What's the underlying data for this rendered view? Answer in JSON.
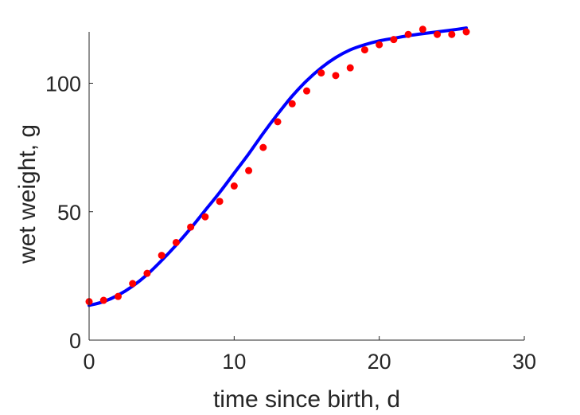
{
  "chart_data": {
    "type": "scatter",
    "title": "",
    "xlabel": "time since birth, d",
    "ylabel": "wet weight, g",
    "xlim": [
      0,
      30
    ],
    "ylim": [
      0,
      120
    ],
    "xticks": [
      0,
      10,
      20,
      30
    ],
    "yticks": [
      0,
      50,
      100
    ],
    "xtick_labels": [
      "0",
      "10",
      "20",
      "30"
    ],
    "ytick_labels": [
      "0",
      "50",
      "100"
    ],
    "grid": false,
    "series": [
      {
        "kind": "points",
        "color": "#ff0000",
        "x": [
          0,
          1,
          2,
          3,
          4,
          5,
          6,
          7,
          8,
          9,
          10,
          11,
          12,
          13,
          14,
          15,
          16,
          17,
          18,
          19,
          20,
          21,
          22,
          23,
          24,
          25,
          26
        ],
        "y": [
          15,
          15.5,
          17,
          22,
          26,
          33,
          38,
          44,
          48,
          54,
          60,
          66,
          75,
          85,
          92,
          97,
          104,
          103,
          106,
          113,
          115,
          117,
          119,
          121,
          119,
          119,
          120
        ]
      },
      {
        "kind": "line",
        "color": "#0000ff",
        "x": [
          0,
          1,
          2,
          3,
          4,
          5,
          6,
          7,
          8,
          9,
          10,
          11,
          12,
          13,
          14,
          15,
          16,
          17,
          18,
          19,
          20,
          21,
          22,
          23,
          24,
          25,
          26
        ],
        "y": [
          13.5,
          15,
          17.5,
          21,
          25.5,
          31,
          37,
          43.5,
          50.5,
          57.5,
          65,
          72.5,
          80.5,
          88,
          95,
          101,
          106,
          110,
          113,
          115,
          116.5,
          117.5,
          118.5,
          119.3,
          120,
          120.7,
          121.5
        ]
      }
    ]
  }
}
